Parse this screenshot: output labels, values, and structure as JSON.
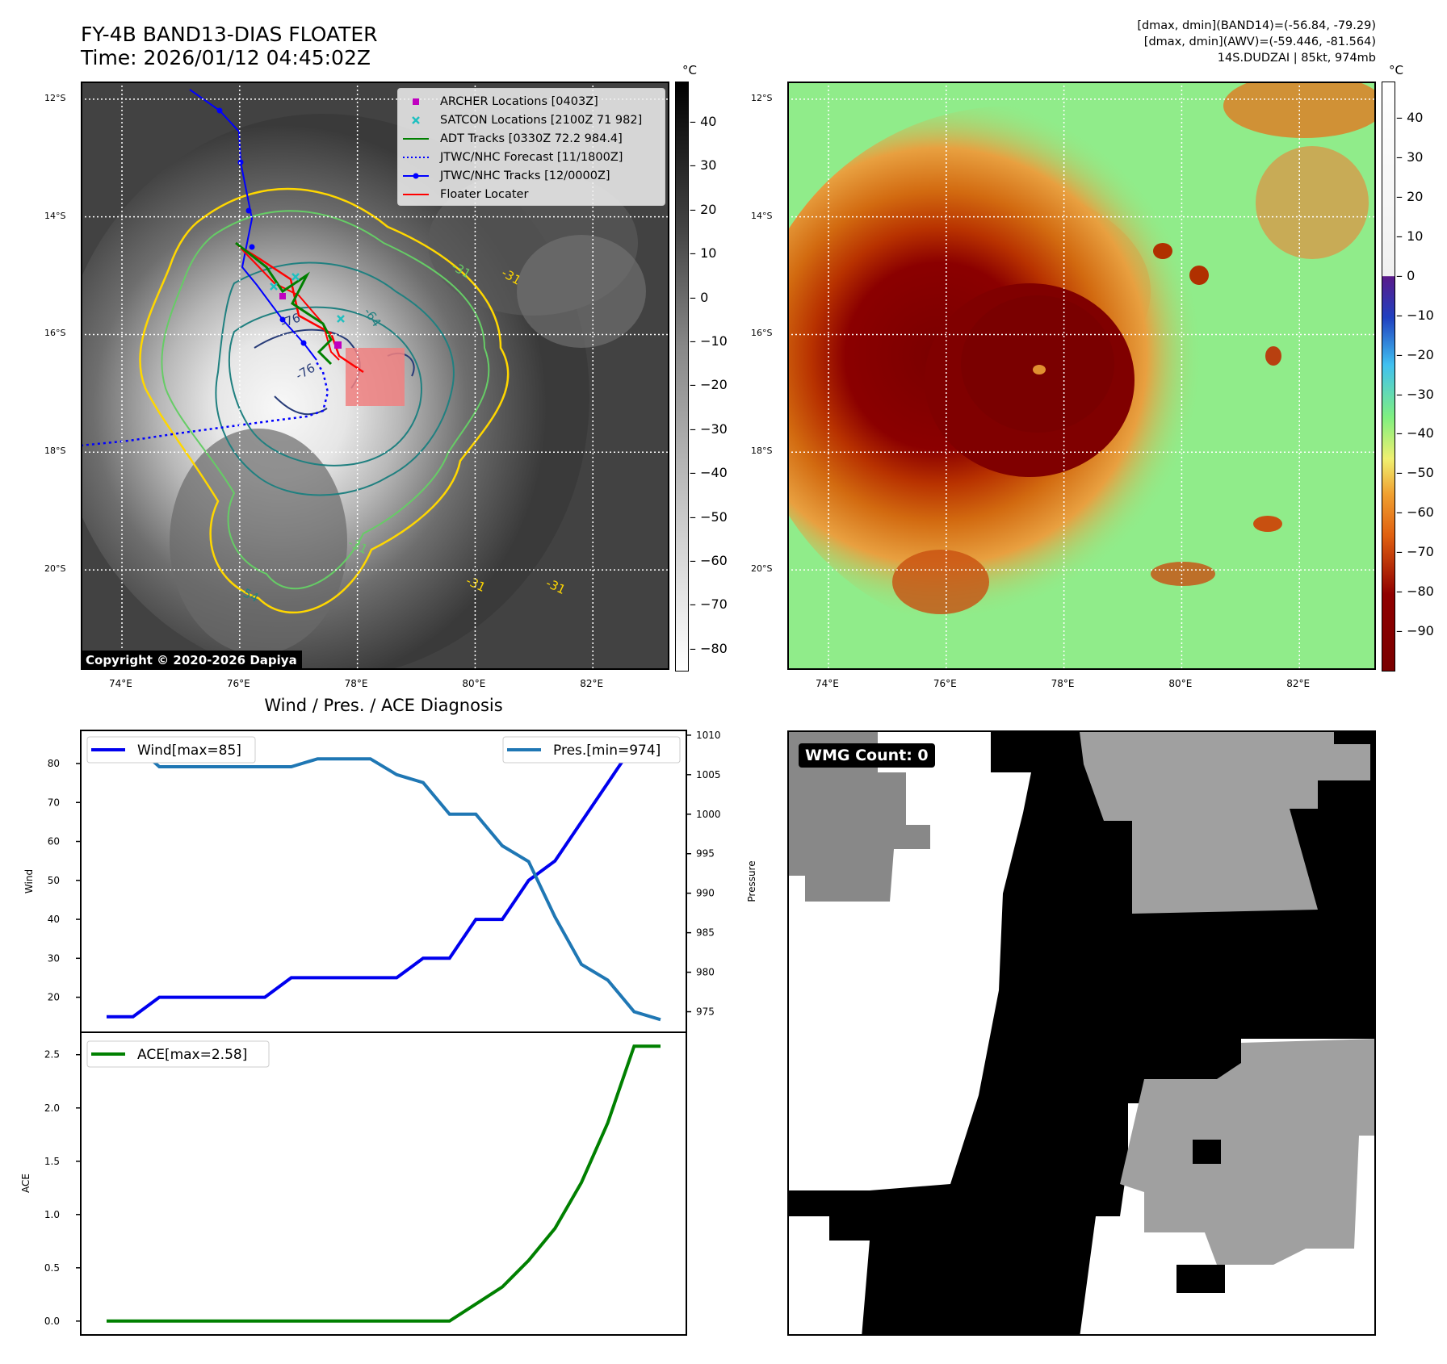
{
  "header": {
    "title_line1": "FY-4B BAND13-DIAS FLOATER",
    "title_line2": "Time: 2026/01/12 04:45:02Z",
    "info_line1": "[dmax, dmin](BAND14)=(-56.84, -79.29)",
    "info_line2": "[dmax, dmin](AWV)=(-59.446, -81.564)",
    "info_line3": "14S.DUDZAI | 85kt, 974mb"
  },
  "map": {
    "lat_labels": [
      "12°S",
      "14°S",
      "16°S",
      "18°S",
      "20°S"
    ],
    "lon_labels": [
      "74°E",
      "76°E",
      "78°E",
      "80°E",
      "82°E"
    ],
    "lat_values": [
      -12,
      -14,
      -16,
      -18,
      -20
    ],
    "lon_values": [
      74,
      76,
      78,
      80,
      82
    ],
    "lat_range": [
      -21.7,
      -11.7
    ],
    "lon_range": [
      73.3,
      83.3
    ],
    "contour_labels": [
      "-31",
      "-31",
      "-31",
      "-31",
      "-31",
      "-54",
      "-64",
      "-76",
      "-76"
    ]
  },
  "legend": [
    {
      "label": "ARCHER Locations [0403Z]",
      "color": "#c000c0",
      "symbol": "square"
    },
    {
      "label": "SATCON Locations [2100Z 71 982]",
      "color": "#20c0c0",
      "symbol": "x"
    },
    {
      "label": "ADT Tracks [0330Z 72.2 984.4]",
      "color": "#008000",
      "symbol": "line"
    },
    {
      "label": "JTWC/NHC Forecast [11/1800Z]",
      "color": "#0000ff",
      "symbol": "dotted"
    },
    {
      "label": "JTWC/NHC Tracks [12/0000Z]",
      "color": "#0000ff",
      "symbol": "line-dot"
    },
    {
      "label": "Floater Locater",
      "color": "#ff0000",
      "symbol": "line"
    }
  ],
  "copyright": "Copyright © 2020-2026 Dapiya",
  "colorbar_gray": {
    "unit": "°C",
    "ticks": [
      "40",
      "30",
      "20",
      "10",
      "0",
      "−10",
      "−20",
      "−30",
      "−40",
      "−50",
      "−60",
      "−70",
      "−80"
    ],
    "tick_values": [
      40,
      30,
      20,
      10,
      0,
      -10,
      -20,
      -30,
      -40,
      -50,
      -60,
      -70,
      -80
    ],
    "range": [
      -85,
      49
    ]
  },
  "colorbar_color": {
    "unit": "°C",
    "ticks": [
      "40",
      "30",
      "20",
      "10",
      "0",
      "−10",
      "−20",
      "−30",
      "−40",
      "−50",
      "−60",
      "−70",
      "−80",
      "−90"
    ],
    "tick_values": [
      40,
      30,
      20,
      10,
      0,
      -10,
      -20,
      -30,
      -40,
      -50,
      -60,
      -70,
      -80,
      -90
    ],
    "range": [
      -100,
      49
    ]
  },
  "diag_title": "Wind / Pres. / ACE Diagnosis",
  "wmg_label": "WMG Count: 0",
  "colors": {
    "wind": "#0000ee",
    "pressure": "#1f77b4",
    "ace": "#008000",
    "contour_yellow": "#ffd700",
    "contour_green": "#66cc66",
    "contour_teal": "#208080",
    "contour_navy": "#283c78"
  },
  "chart_data": [
    {
      "type": "line",
      "x": [
        0,
        1,
        2,
        3,
        4,
        5,
        6,
        7,
        8,
        9,
        10,
        11,
        12,
        13,
        14,
        15,
        16,
        17,
        18,
        19,
        20,
        21
      ],
      "series": [
        {
          "name": "Wind[max=85]",
          "axis": "left",
          "values": [
            15,
            15,
            20,
            20,
            20,
            20,
            20,
            25,
            25,
            25,
            25,
            25,
            30,
            30,
            40,
            40,
            50,
            55,
            65,
            75,
            85,
            85
          ]
        },
        {
          "name": "Pres.[min=974]",
          "axis": "right",
          "values": [
            1009,
            1009,
            1006,
            1006,
            1006,
            1006,
            1006,
            1006,
            1007,
            1007,
            1007,
            1005,
            1004,
            1000,
            1000,
            996,
            994,
            987,
            981,
            979,
            975,
            974
          ]
        }
      ],
      "ylabel": "Wind",
      "ylabel_right": "Pressure",
      "yticks_left": [
        "20",
        "30",
        "40",
        "50",
        "60",
        "70",
        "80"
      ],
      "yticks_left_values": [
        20,
        30,
        40,
        50,
        60,
        70,
        80
      ],
      "yticks_right": [
        "975",
        "980",
        "985",
        "990",
        "995",
        "1000",
        "1005",
        "1010"
      ],
      "yticks_right_values": [
        975,
        980,
        985,
        990,
        995,
        1000,
        1005,
        1010
      ],
      "ylim_left": [
        11,
        88.5
      ],
      "ylim_right": [
        972.4,
        1010.6
      ],
      "legend_left": "Wind[max=85]",
      "legend_right": "Pres.[min=974]"
    },
    {
      "type": "line",
      "x": [
        0,
        1,
        2,
        3,
        4,
        5,
        6,
        7,
        8,
        9,
        10,
        11,
        12,
        13,
        14,
        15,
        16,
        17,
        18,
        19,
        20,
        21
      ],
      "series": [
        {
          "name": "ACE[max=2.58]",
          "values": [
            0,
            0,
            0,
            0,
            0,
            0,
            0,
            0,
            0,
            0,
            0,
            0,
            0,
            0,
            0.16,
            0.32,
            0.57,
            0.87,
            1.3,
            1.86,
            2.58,
            2.58
          ]
        }
      ],
      "ylabel": "ACE",
      "yticks": [
        "0.0",
        "0.5",
        "1.0",
        "1.5",
        "2.0",
        "2.5"
      ],
      "yticks_values": [
        0,
        0.5,
        1.0,
        1.5,
        2.0,
        2.5
      ],
      "ylim": [
        -0.13,
        2.71
      ],
      "legend": "ACE[max=2.58]"
    }
  ]
}
